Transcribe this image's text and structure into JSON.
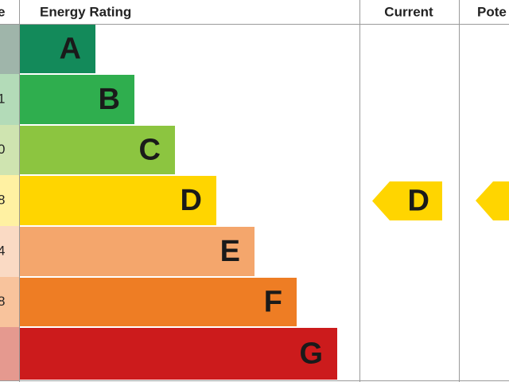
{
  "header": {
    "score": "e",
    "rating": "Energy Rating",
    "current": "Current",
    "potential": "Pote"
  },
  "bands": [
    {
      "letter": "A"
    },
    {
      "letter": "B",
      "score": "1"
    },
    {
      "letter": "C",
      "score": "0"
    },
    {
      "letter": "D",
      "score": "8"
    },
    {
      "letter": "E",
      "score": "4"
    },
    {
      "letter": "F",
      "score": "8"
    },
    {
      "letter": "G"
    }
  ],
  "current": "D"
}
